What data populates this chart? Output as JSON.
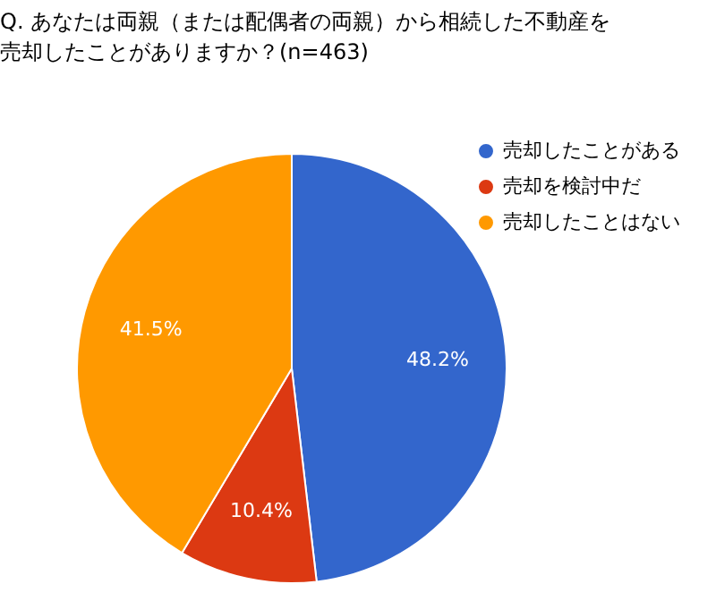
{
  "chart_data": {
    "type": "pie",
    "title": "Q. あなたは両親（または配偶者の両親）から相続した不動産を売却したことがありますか？(n=463)",
    "categories": [
      "売却したことがある",
      "売却を検討中だ",
      "売却したことはない"
    ],
    "values": [
      48.2,
      10.4,
      41.5
    ],
    "colors": [
      "#3366cc",
      "#dc3912",
      "#ff9900"
    ],
    "value_labels": [
      "48.2%",
      "10.4%",
      "41.5%"
    ],
    "legend": "top right"
  }
}
